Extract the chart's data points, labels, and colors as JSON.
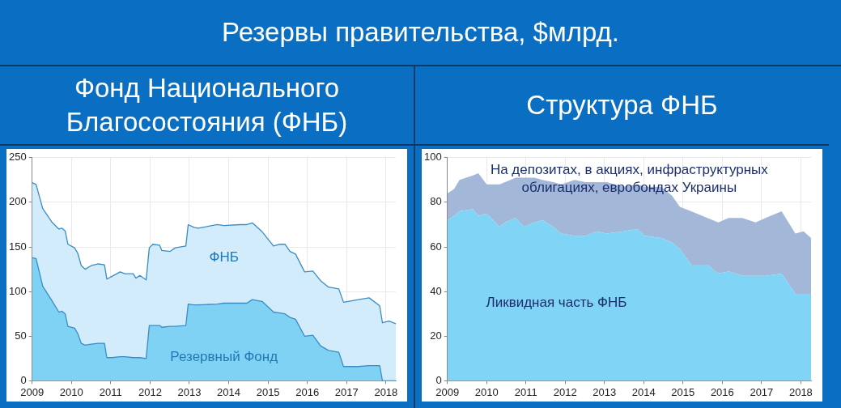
{
  "chart_data": [
    {
      "type": "other",
      "title": "Резервы правительства, $млрд."
    },
    {
      "type": "area",
      "title": "Фонд Национального Благосостояния (ФНБ)",
      "stacked": true,
      "line_style": "solid",
      "grid": true,
      "legend": false,
      "x": [
        2009.0,
        2009.1,
        2009.27,
        2009.5,
        2009.68,
        2009.76,
        2009.84,
        2009.91,
        2010.08,
        2010.16,
        2010.25,
        2010.35,
        2010.5,
        2010.68,
        2010.84,
        2010.9,
        2011.03,
        2011.24,
        2011.36,
        2011.57,
        2011.64,
        2011.74,
        2011.9,
        2011.98,
        2012.07,
        2012.24,
        2012.3,
        2012.51,
        2012.64,
        2012.91,
        2012.97,
        2013.12,
        2013.22,
        2013.71,
        2013.88,
        2014.29,
        2014.46,
        2014.6,
        2014.85,
        2015.14,
        2015.3,
        2015.43,
        2015.56,
        2015.7,
        2015.93,
        2016.14,
        2016.34,
        2016.54,
        2016.8,
        2016.92,
        2017.3,
        2017.57,
        2017.84,
        2017.91,
        2018.08,
        2018.25
      ],
      "series": [
        {
          "name": "Резервный Фонд",
          "color": "#7fd2f4",
          "values": [
            138,
            137,
            106,
            90,
            77,
            78,
            75,
            61,
            59,
            53,
            42,
            40,
            41,
            42,
            42,
            26,
            26,
            27,
            27,
            26,
            26,
            26,
            25,
            62,
            62,
            62,
            60,
            61,
            61,
            62,
            86,
            85,
            85,
            86,
            87,
            87,
            87,
            91,
            89,
            77,
            76,
            75,
            71,
            69,
            50,
            51,
            39,
            34,
            32,
            16,
            16,
            17,
            17,
            0,
            0,
            0
          ]
        },
        {
          "name": "ФНБ",
          "color": "#d3ecfb",
          "values": [
            84,
            83,
            87,
            88,
            93,
            93,
            93,
            92,
            90,
            90,
            87,
            85,
            88,
            89,
            88,
            88,
            91,
            95,
            93,
            94,
            89,
            92,
            88,
            87,
            91,
            90,
            86,
            84,
            88,
            89,
            89,
            87,
            86,
            89,
            87,
            88,
            88,
            86,
            78,
            74,
            77,
            78,
            74,
            73,
            72,
            72,
            73,
            71,
            71,
            72,
            75,
            76,
            67,
            65,
            67,
            64
          ]
        }
      ],
      "xlim": [
        2009,
        2018.25
      ],
      "xticks": [
        2009,
        2010,
        2011,
        2012,
        2013,
        2014,
        2015,
        2016,
        2017,
        2018
      ],
      "ylim": [
        0,
        250
      ],
      "yticks": [
        0,
        50,
        100,
        150,
        200,
        250
      ]
    },
    {
      "type": "area",
      "title": "Структура ФНБ",
      "stacked": true,
      "grid": true,
      "legend": false,
      "x": [
        2009.0,
        2009.17,
        2009.31,
        2009.65,
        2009.79,
        2010.0,
        2010.33,
        2010.47,
        2010.74,
        2010.95,
        2011.22,
        2011.42,
        2011.7,
        2011.9,
        2012.24,
        2012.52,
        2012.8,
        2013.06,
        2013.49,
        2013.83,
        2014.03,
        2014.44,
        2014.72,
        2014.92,
        2015.21,
        2015.62,
        2015.9,
        2016.16,
        2016.51,
        2016.85,
        2017.1,
        2017.51,
        2017.86,
        2018.07,
        2018.26
      ],
      "series": [
        {
          "name": "Ликвидная часть ФНБ",
          "color": "#80d4f6",
          "values": [
            72,
            74,
            76,
            77,
            74,
            75,
            69,
            71,
            73,
            69,
            71,
            72,
            69,
            66,
            65,
            65,
            67,
            66,
            67,
            68,
            65,
            64,
            62,
            59,
            52,
            52,
            48,
            49,
            47,
            47,
            47,
            48,
            39,
            39,
            39
          ]
        },
        {
          "name": "На депозитах, в акциях, инфраструктурных облигациях, евробондах Украины",
          "color": "#a3b8d8",
          "values": [
            12,
            12,
            14,
            15,
            19,
            13,
            19,
            18,
            18,
            22,
            20,
            18,
            20,
            22,
            25,
            24,
            22,
            23,
            20,
            20,
            22,
            23,
            21,
            19,
            24,
            21,
            23,
            24,
            26,
            24,
            26,
            28,
            27,
            28,
            25
          ]
        }
      ],
      "xlim": [
        2009,
        2018.26
      ],
      "xticks": [
        2009,
        2010,
        2011,
        2012,
        2013,
        2014,
        2015,
        2016,
        2017,
        2018
      ],
      "ylim": [
        0,
        100
      ],
      "yticks": [
        0,
        20,
        40,
        60,
        80,
        100
      ]
    }
  ]
}
